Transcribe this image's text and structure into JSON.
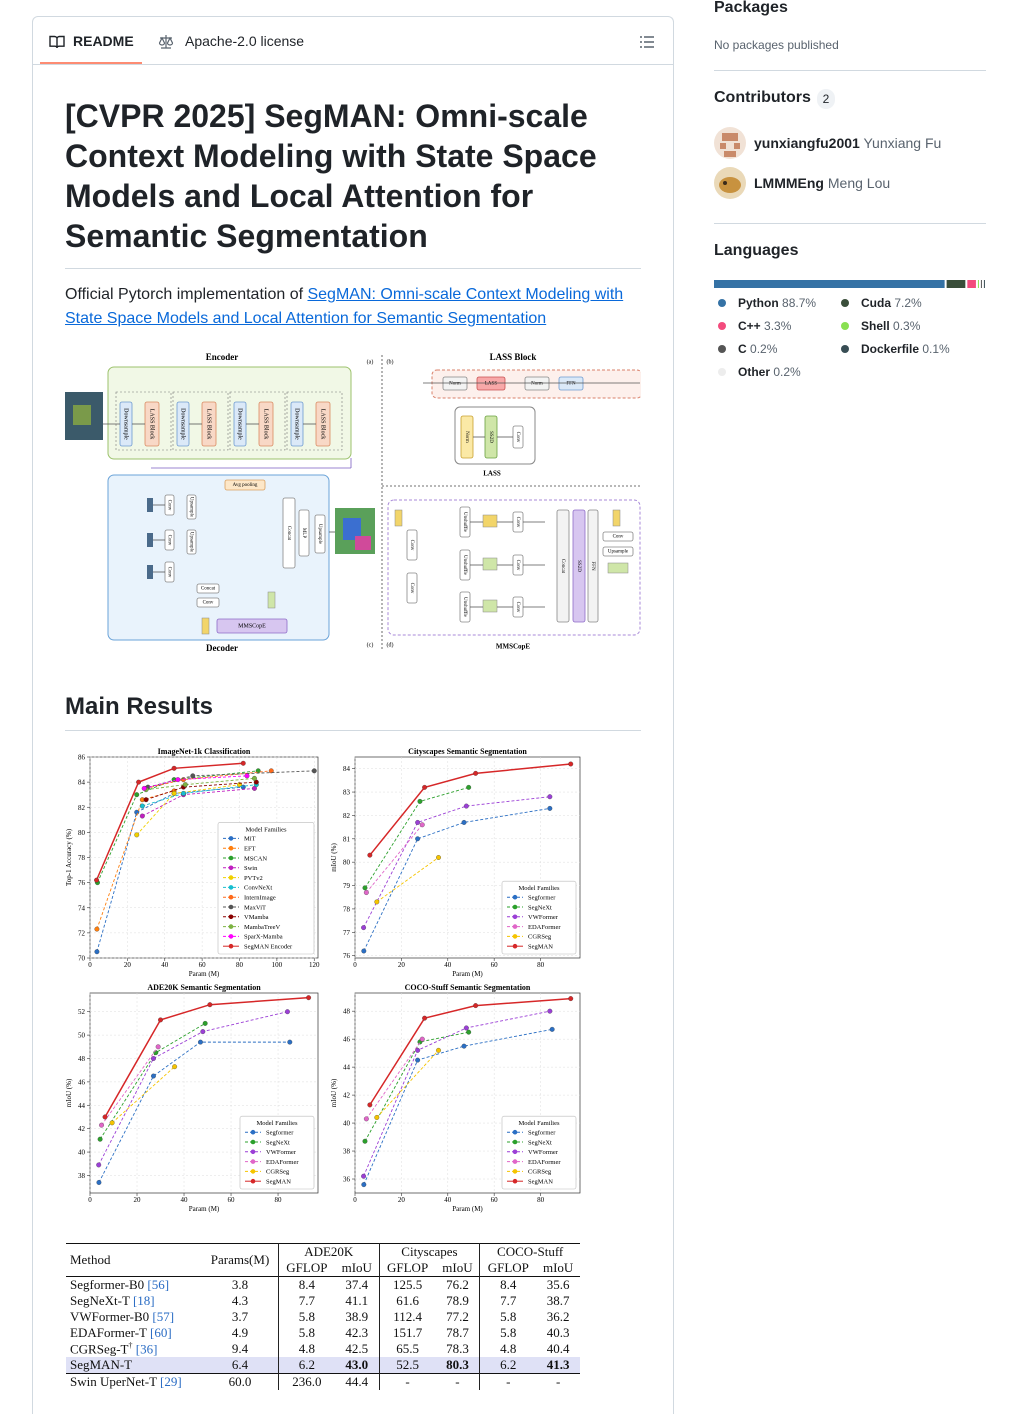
{
  "tabs": {
    "readme": "README",
    "license": "Apache-2.0 license"
  },
  "readme": {
    "title": "[CVPR 2025] SegMAN: Omni-scale Context Modeling with State Space Models and Local Attention for Semantic Segmentation",
    "intro": "Official Pytorch implementation of ",
    "paper_link": "SegMAN: Omni-scale Context Modeling with State Space Models and Local Attention for Semantic Segmentation",
    "main_results": "Main Results",
    "figure": {
      "encoder": "Encoder",
      "decoder": "Decoder",
      "lass_block": "LASS Block",
      "lass": "LASS",
      "mmscope": "MMSCopE",
      "panels": [
        "(a)",
        "(b)",
        "(c)",
        "(d)"
      ],
      "blocks": {
        "downsample": "Downsample",
        "lass_block": "LASS Block",
        "norm": "Norm",
        "lass": "LASS",
        "ffn": "FFN",
        "ss2d": "SS2D",
        "conv": "Conv",
        "upsample": "Upsample",
        "mlp": "MLP",
        "concat": "Concat",
        "avg_pooling": "Avg pooling",
        "unshuffle": "Unshuffle",
        "mmscope": "MMSCopE"
      }
    }
  },
  "chart_data": [
    {
      "type": "line",
      "title": "ImageNet-1k Classification",
      "x_label": "Param (M)",
      "y_label": "Top-1 Accuracy (%)",
      "legend_title": "Model Families",
      "legend": "lower right",
      "grid": true,
      "xlim": [
        0,
        122
      ],
      "xticks": [
        0,
        20,
        40,
        60,
        80,
        100,
        120
      ],
      "ylim": [
        70,
        86
      ],
      "yticks": [
        70,
        72,
        74,
        76,
        78,
        80,
        82,
        84,
        86
      ],
      "series": [
        {
          "name": "MiT",
          "color": "#2b6fc4",
          "linestyle": "dashed",
          "x": [
            3.7,
            25,
            45,
            82
          ],
          "values": [
            70.5,
            81.6,
            83.1,
            83.6
          ]
        },
        {
          "name": "EFT",
          "color": "#ff7f0e",
          "linestyle": "dashed",
          "x": [
            3.7,
            28,
            45
          ],
          "values": [
            72.3,
            82.6,
            83.3
          ]
        },
        {
          "name": "MSCAN",
          "color": "#2ca02c",
          "linestyle": "dashed",
          "x": [
            4,
            25,
            45,
            90
          ],
          "values": [
            76,
            83,
            84.2,
            84.9
          ]
        },
        {
          "name": "Swin",
          "color": "#c01fc0",
          "linestyle": "dashed",
          "x": [
            28,
            50,
            88
          ],
          "values": [
            81.3,
            83,
            83.5
          ]
        },
        {
          "name": "PVTv2",
          "color": "#f0d000",
          "linestyle": "dashed",
          "x": [
            25,
            45,
            80
          ],
          "values": [
            79.8,
            83.1,
            83.8
          ]
        },
        {
          "name": "ConvNeXt",
          "color": "#17becf",
          "linestyle": "dashed",
          "x": [
            28,
            50,
            89
          ],
          "values": [
            82.1,
            83.1,
            83.8
          ]
        },
        {
          "name": "InternImage",
          "color": "#ff6a1a",
          "linestyle": "dashed",
          "x": [
            30,
            50,
            97
          ],
          "values": [
            83.5,
            84.2,
            84.9
          ]
        },
        {
          "name": "MaxViT",
          "color": "#555555",
          "linestyle": "dashed",
          "x": [
            31,
            55,
            120
          ],
          "values": [
            83.6,
            84.5,
            84.9
          ]
        },
        {
          "name": "VMamba",
          "color": "#8b0000",
          "linestyle": "dashed",
          "x": [
            30,
            50,
            89
          ],
          "values": [
            82.6,
            83.6,
            84
          ]
        },
        {
          "name": "MambaTreeV",
          "color": "#7cb342",
          "linestyle": "dashed",
          "x": [
            30,
            51,
            88
          ],
          "values": [
            83.4,
            83.8,
            84.3
          ]
        },
        {
          "name": "SparX-Mamba",
          "color": "#ff00ff",
          "linestyle": "dashed",
          "x": [
            29,
            47,
            84
          ],
          "values": [
            83.5,
            84.2,
            84.5
          ]
        },
        {
          "name": "SegMAN Encoder",
          "color": "#d62728",
          "linestyle": "solid",
          "x": [
            3.5,
            26,
            45,
            82
          ],
          "values": [
            76.2,
            84,
            85.1,
            85.5
          ]
        }
      ]
    },
    {
      "type": "line",
      "title": "Cityscapes Semantic Segmentation",
      "x_label": "Param (M)",
      "y_label": "mIoU (%)",
      "legend_title": "Model Families",
      "legend": "lower right",
      "grid": true,
      "xlim": [
        0,
        97
      ],
      "xticks": [
        0,
        20,
        40,
        60,
        80
      ],
      "ylim": [
        75.9,
        84.5
      ],
      "yticks": [
        76,
        77,
        78,
        79,
        80,
        81,
        82,
        83,
        84
      ],
      "series": [
        {
          "name": "Segformer",
          "color": "#2b6fc4",
          "linestyle": "dashed",
          "x": [
            3.8,
            27,
            47,
            84
          ],
          "values": [
            76.2,
            81,
            81.7,
            82.3
          ]
        },
        {
          "name": "SegNeXt",
          "color": "#2ca02c",
          "linestyle": "dashed",
          "x": [
            4.3,
            28,
            49
          ],
          "values": [
            78.9,
            82.6,
            83.2
          ]
        },
        {
          "name": "VWFormer",
          "color": "#9b3fd6",
          "linestyle": "dashed",
          "x": [
            3.7,
            27,
            48,
            84
          ],
          "values": [
            77.2,
            81.7,
            82.4,
            82.8
          ]
        },
        {
          "name": "EDAFormer",
          "color": "#e066c8",
          "linestyle": "dashed",
          "x": [
            4.9,
            29
          ],
          "values": [
            78.7,
            81.6
          ]
        },
        {
          "name": "CGRSeg",
          "color": "#f5c400",
          "linestyle": "dashed",
          "x": [
            9.4,
            36
          ],
          "values": [
            78.3,
            80.2
          ]
        },
        {
          "name": "SegMAN",
          "color": "#d62728",
          "linestyle": "solid",
          "x": [
            6.4,
            30,
            52,
            93
          ],
          "values": [
            80.3,
            83.2,
            83.8,
            84.2
          ]
        }
      ]
    },
    {
      "type": "line",
      "title": "ADE20K Semantic Segmentation",
      "x_label": "Param (M)",
      "y_label": "mIoU (%)",
      "legend_title": "Model Families",
      "legend": "lower right",
      "grid": true,
      "xlim": [
        0,
        97
      ],
      "xticks": [
        0,
        20,
        40,
        60,
        80
      ],
      "ylim": [
        36.5,
        53.6
      ],
      "yticks": [
        38,
        40,
        42,
        44,
        46,
        48,
        50,
        52
      ],
      "series": [
        {
          "name": "Segformer",
          "color": "#2b6fc4",
          "linestyle": "dashed",
          "x": [
            3.8,
            27,
            47,
            85
          ],
          "values": [
            37.4,
            46.5,
            49.4,
            49.4
          ]
        },
        {
          "name": "SegNeXt",
          "color": "#2ca02c",
          "linestyle": "dashed",
          "x": [
            4.3,
            28,
            49
          ],
          "values": [
            41.1,
            48.5,
            51
          ]
        },
        {
          "name": "VWFormer",
          "color": "#9b3fd6",
          "linestyle": "dashed",
          "x": [
            3.7,
            27,
            48,
            84
          ],
          "values": [
            38.9,
            48,
            50.3,
            52
          ]
        },
        {
          "name": "EDAFormer",
          "color": "#e066c8",
          "linestyle": "dashed",
          "x": [
            4.9,
            29
          ],
          "values": [
            42.3,
            49
          ]
        },
        {
          "name": "CGRSeg",
          "color": "#f5c400",
          "linestyle": "dashed",
          "x": [
            9.4,
            36
          ],
          "values": [
            42.5,
            47.3
          ]
        },
        {
          "name": "SegMAN",
          "color": "#d62728",
          "linestyle": "solid",
          "x": [
            6.4,
            30,
            51,
            93
          ],
          "values": [
            43,
            51.3,
            52.6,
            53.2
          ]
        }
      ]
    },
    {
      "type": "line",
      "title": "COCO-Stuff Semantic Segmentation",
      "x_label": "Param (M)",
      "y_label": "mIoU (%)",
      "legend_title": "Model Families",
      "legend": "lower right",
      "grid": true,
      "xlim": [
        0,
        97
      ],
      "xticks": [
        0,
        20,
        40,
        60,
        80
      ],
      "ylim": [
        35,
        49.3
      ],
      "yticks": [
        36,
        38,
        40,
        42,
        44,
        46,
        48
      ],
      "series": [
        {
          "name": "Segformer",
          "color": "#2b6fc4",
          "linestyle": "dashed",
          "x": [
            3.8,
            27,
            47,
            85
          ],
          "values": [
            35.6,
            44.5,
            45.5,
            46.7
          ]
        },
        {
          "name": "SegNeXt",
          "color": "#2ca02c",
          "linestyle": "dashed",
          "x": [
            4.3,
            28,
            49
          ],
          "values": [
            38.7,
            45.8,
            46.5
          ]
        },
        {
          "name": "VWFormer",
          "color": "#9b3fd6",
          "linestyle": "dashed",
          "x": [
            3.7,
            27,
            48,
            84
          ],
          "values": [
            36.2,
            45.2,
            46.8,
            48
          ]
        },
        {
          "name": "EDAFormer",
          "color": "#e066c8",
          "linestyle": "dashed",
          "x": [
            4.9,
            29
          ],
          "values": [
            40.3,
            46
          ]
        },
        {
          "name": "CGRSeg",
          "color": "#f5c400",
          "linestyle": "dashed",
          "x": [
            9.4,
            36
          ],
          "values": [
            40.4,
            45.2
          ]
        },
        {
          "name": "SegMAN",
          "color": "#d62728",
          "linestyle": "solid",
          "x": [
            6.4,
            30,
            52,
            93
          ],
          "values": [
            41.3,
            47.5,
            48.4,
            48.9
          ]
        }
      ]
    }
  ],
  "table": {
    "columns": [
      "Method",
      "Params(M)"
    ],
    "groups": [
      "ADE20K",
      "Cityscapes",
      "COCO-Stuff"
    ],
    "subcolumns": [
      "GFLOP",
      "mIoU"
    ],
    "rows": [
      {
        "method": "Segformer-B0",
        "ref": "[56]",
        "cells": [
          "3.8",
          "8.4",
          "37.4",
          "125.5",
          "76.2",
          "8.4",
          "35.6"
        ]
      },
      {
        "method": "SegNeXt-T",
        "ref": "[18]",
        "cells": [
          "4.3",
          "7.7",
          "41.1",
          "61.6",
          "78.9",
          "7.7",
          "38.7"
        ]
      },
      {
        "method": "VWFormer-B0",
        "ref": "[57]",
        "cells": [
          "3.7",
          "5.8",
          "38.9",
          "112.4",
          "77.2",
          "5.8",
          "36.2"
        ]
      },
      {
        "method": "EDAFormer-T",
        "ref": "[60]",
        "cells": [
          "4.9",
          "5.8",
          "42.3",
          "151.7",
          "78.7",
          "5.8",
          "40.3"
        ]
      },
      {
        "method": "CGRSeg-T",
        "sup": "†",
        "ref": "[36]",
        "cells": [
          "9.4",
          "4.8",
          "42.5",
          "65.5",
          "78.3",
          "4.8",
          "40.4"
        ]
      },
      {
        "method": "SegMAN-T",
        "highlight": true,
        "bold": [
          2,
          4,
          6
        ],
        "cells": [
          "6.4",
          "6.2",
          "43.0",
          "52.5",
          "80.3",
          "6.2",
          "41.3"
        ]
      },
      {
        "method": "Swin UperNet-T",
        "ref": "[29]",
        "cells": [
          "60.0",
          "236.0",
          "44.4",
          "-",
          "-",
          "-",
          "-"
        ]
      }
    ]
  },
  "sidebar": {
    "packages": {
      "title": "Packages",
      "text": "No packages published"
    },
    "contributors": {
      "title": "Contributors",
      "count": "2",
      "people": [
        {
          "login": "yunxiangfu2001",
          "name": "Yunxiang Fu"
        },
        {
          "login": "LMMMEng",
          "name": "Meng Lou"
        }
      ]
    },
    "languages": {
      "title": "Languages",
      "items": [
        {
          "name": "Python",
          "percent": {
            "value": 88.7,
            "label": "88.7%"
          },
          "color": "#3572A5"
        },
        {
          "name": "Cuda",
          "percent": {
            "value": 7.2,
            "label": "7.2%"
          },
          "color": "#3A4E3A"
        },
        {
          "name": "C++",
          "percent": {
            "value": 3.3,
            "label": "3.3%"
          },
          "color": "#f34b7d"
        },
        {
          "name": "Shell",
          "percent": {
            "value": 0.3,
            "label": "0.3%"
          },
          "color": "#89e051"
        },
        {
          "name": "C",
          "percent": {
            "value": 0.2,
            "label": "0.2%"
          },
          "color": "#555555"
        },
        {
          "name": "Dockerfile",
          "percent": {
            "value": 0.1,
            "label": "0.1%"
          },
          "color": "#384d54"
        },
        {
          "name": "Other",
          "percent": {
            "value": 0.2,
            "label": "0.2%"
          },
          "color": "#ededed"
        }
      ]
    }
  }
}
